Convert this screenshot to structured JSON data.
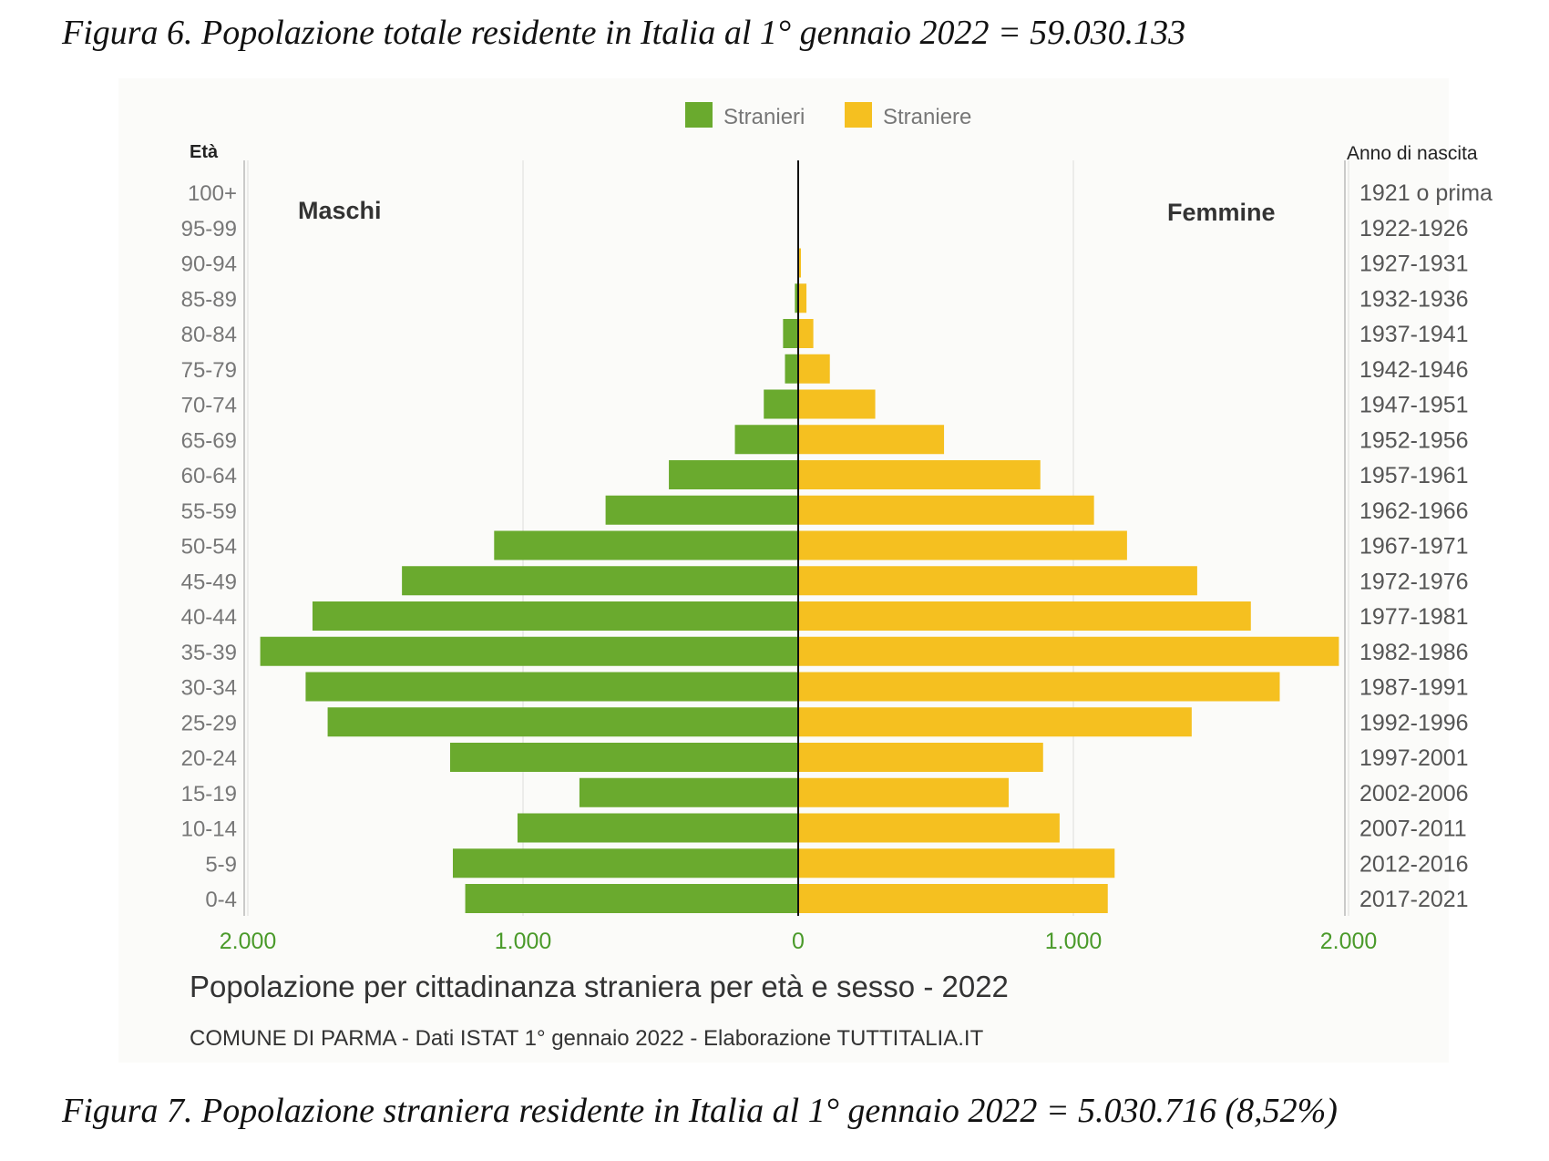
{
  "captions": {
    "top": "Figura 6. Popolazione totale residente in Italia al 1° gennaio 2022 = 59.030.133",
    "bottom": "Figura 7. Popolazione straniera residente in Italia al 1° gennaio 2022 = 5.030.716 (8,52%)"
  },
  "chart_data": {
    "type": "bar",
    "orientation": "horizontal-pyramid",
    "title": "Popolazione per cittadinanza straniera per età e sesso - 2022",
    "source": "COMUNE DI PARMA - Dati ISTAT 1° gennaio 2022 - Elaborazione TUTTITALIA.IT",
    "left_axis_label": "Età",
    "right_axis_label": "Anno di nascita",
    "left_side_label": "Maschi",
    "right_side_label": "Femmine",
    "categories": [
      "0-4",
      "5-9",
      "10-14",
      "15-19",
      "20-24",
      "25-29",
      "30-34",
      "35-39",
      "40-44",
      "45-49",
      "50-54",
      "55-59",
      "60-64",
      "65-69",
      "70-74",
      "75-79",
      "80-84",
      "85-89",
      "90-94",
      "95-99",
      "100+"
    ],
    "birth_years": [
      "2017-2021",
      "2012-2016",
      "2007-2011",
      "2002-2006",
      "1997-2001",
      "1992-1996",
      "1987-1991",
      "1982-1986",
      "1977-1981",
      "1972-1976",
      "1967-1971",
      "1962-1966",
      "1957-1961",
      "1952-1956",
      "1947-1951",
      "1942-1946",
      "1937-1941",
      "1932-1936",
      "1927-1931",
      "1922-1926",
      "1921 o prima"
    ],
    "series": [
      {
        "name": "Stranieri",
        "color": "#6aaa2e",
        "side": "left",
        "values": [
          1210,
          1255,
          1020,
          795,
          1265,
          1710,
          1790,
          1955,
          1765,
          1440,
          1105,
          700,
          470,
          230,
          125,
          48,
          55,
          12,
          3,
          1,
          0
        ]
      },
      {
        "name": "Straniere",
        "color": "#f5c020",
        "side": "right",
        "values": [
          1125,
          1150,
          950,
          765,
          890,
          1430,
          1750,
          1965,
          1645,
          1450,
          1195,
          1075,
          880,
          530,
          280,
          115,
          55,
          30,
          10,
          2,
          0
        ]
      }
    ],
    "xlim": [
      -2000,
      2000
    ],
    "x_ticks": [
      -2000,
      -1000,
      0,
      1000,
      2000
    ],
    "x_tick_labels": [
      "2.000",
      "1.000",
      "0",
      "1.000",
      "2.000"
    ],
    "grid": true,
    "legend_position": "top-center"
  }
}
